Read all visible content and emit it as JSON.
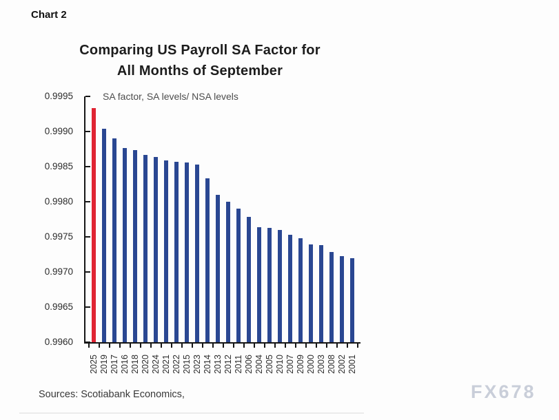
{
  "page": {
    "chart_label": "Chart 2"
  },
  "header": {
    "title_line1": "Comparing US Payroll SA Factor for",
    "title_line2": "All Months of September"
  },
  "chart_data": {
    "type": "bar",
    "title": "Comparing US Payroll SA Factor for All Months of September",
    "annotation": "SA factor, SA levels/ NSA levels",
    "categories": [
      "2025",
      "2019",
      "2017",
      "2016",
      "2018",
      "2020",
      "2024",
      "2021",
      "2022",
      "2015",
      "2023",
      "2014",
      "2013",
      "2012",
      "2011",
      "2006",
      "2004",
      "2005",
      "2010",
      "2007",
      "2009",
      "2000",
      "2003",
      "2008",
      "2002",
      "2001"
    ],
    "values": [
      0.99933,
      0.99904,
      0.9989,
      0.99876,
      0.99874,
      0.99867,
      0.99864,
      0.99859,
      0.99857,
      0.99856,
      0.99853,
      0.99833,
      0.9981,
      0.998,
      0.9979,
      0.99778,
      0.99764,
      0.99763,
      0.9976,
      0.99753,
      0.99748,
      0.99739,
      0.99738,
      0.99728,
      0.99723,
      0.9972
    ],
    "highlight_index": 0,
    "colors": {
      "highlight_bar": "#e02433",
      "default_bar": "#2a4792",
      "axis": "#151515"
    },
    "xlabel": "",
    "ylabel": "",
    "ylim": [
      0.996,
      0.9995
    ],
    "ytick_step": 0.0005,
    "yticks": [
      "0.9995",
      "0.9990",
      "0.9985",
      "0.9980",
      "0.9975",
      "0.9970",
      "0.9965",
      "0.9960"
    ],
    "grid": false,
    "legend_position": "top-left-inside"
  },
  "footer": {
    "source": "Sources: Scotiabank Economics,",
    "watermark": "FX678"
  }
}
